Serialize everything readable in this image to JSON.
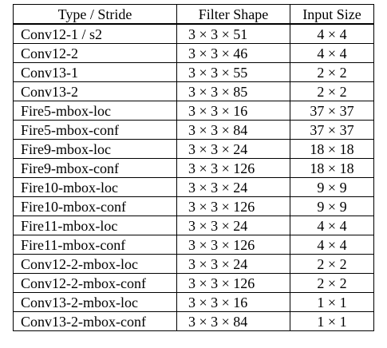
{
  "table": {
    "headers": [
      "Type / Stride",
      "Filter Shape",
      "Input Size"
    ],
    "rows": [
      {
        "type": "Conv12-1 / s2",
        "shape": "3 × 3 × 51",
        "size": "4 × 4"
      },
      {
        "type": "Conv12-2",
        "shape": "3 × 3 × 46",
        "size": "4 × 4"
      },
      {
        "type": "Conv13-1",
        "shape": "3 × 3 × 55",
        "size": "2 × 2"
      },
      {
        "type": "Conv13-2",
        "shape": "3 × 3 × 85",
        "size": "2 × 2"
      },
      {
        "type": "Fire5-mbox-loc",
        "shape": "3 × 3 × 16",
        "size": "37 × 37"
      },
      {
        "type": "Fire5-mbox-conf",
        "shape": "3 × 3 × 84",
        "size": "37 × 37"
      },
      {
        "type": "Fire9-mbox-loc",
        "shape": "3 × 3 × 24",
        "size": "18 × 18"
      },
      {
        "type": "Fire9-mbox-conf",
        "shape": "3 × 3 × 126",
        "size": "18 × 18"
      },
      {
        "type": "Fire10-mbox-loc",
        "shape": "3 × 3 × 24",
        "size": "9 × 9"
      },
      {
        "type": "Fire10-mbox-conf",
        "shape": "3 × 3 × 126",
        "size": "9 × 9"
      },
      {
        "type": "Fire11-mbox-loc",
        "shape": "3 × 3 × 24",
        "size": "4 × 4"
      },
      {
        "type": "Fire11-mbox-conf",
        "shape": "3 × 3 × 126",
        "size": "4 × 4"
      },
      {
        "type": "Conv12-2-mbox-loc",
        "shape": "3 × 3 × 24",
        "size": "2 × 2"
      },
      {
        "type": "Conv12-2-mbox-conf",
        "shape": "3 × 3 × 126",
        "size": "2 × 2"
      },
      {
        "type": "Conv13-2-mbox-loc",
        "shape": "3 × 3 × 16",
        "size": "1 × 1"
      },
      {
        "type": "Conv13-2-mbox-conf",
        "shape": "3 × 3 × 84",
        "size": "1 × 1"
      }
    ]
  }
}
